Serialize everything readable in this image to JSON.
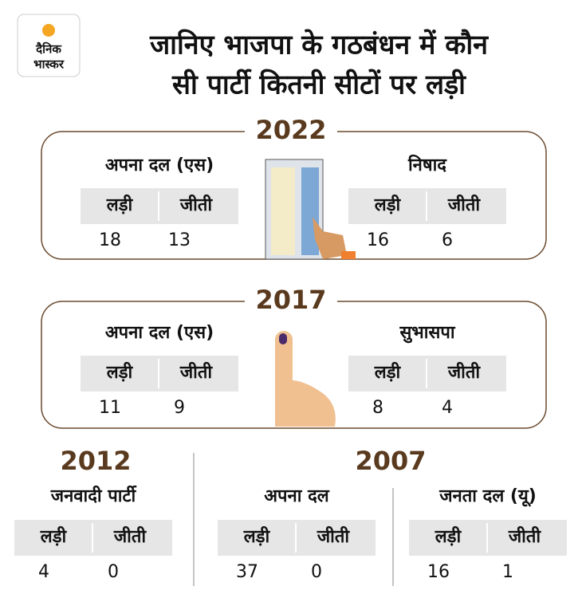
{
  "logo": {
    "lines": [
      "दैनिक",
      "भास्कर"
    ]
  },
  "title": {
    "lines": [
      "जानिए भाजपा के गठबंधन में कौन",
      "सी पार्टी कितनी सीटों पर लड़ी"
    ]
  },
  "column_labels": [
    "लड़ी",
    "जीती"
  ],
  "sections": [
    {
      "year": "2022",
      "parties": [
        {
          "name": "अपना दल (एस)",
          "contested": 18,
          "won": 13
        },
        {
          "name": "निषाद",
          "contested": 16,
          "won": 6
        }
      ]
    },
    {
      "year": "2017",
      "parties": [
        {
          "name": "अपना दल (एस)",
          "contested": 11,
          "won": 9
        },
        {
          "name": "सुभासपा",
          "contested": 8,
          "won": 4
        }
      ]
    },
    {
      "year": "2012",
      "parties": [
        {
          "name": "जनवादी पार्टी",
          "contested": 4,
          "won": 0
        }
      ]
    },
    {
      "year": "2007",
      "parties": [
        {
          "name": "अपना दल",
          "contested": 37,
          "won": 0
        },
        {
          "name": "जनता दल (यू)",
          "contested": 16,
          "won": 1
        }
      ]
    }
  ]
}
